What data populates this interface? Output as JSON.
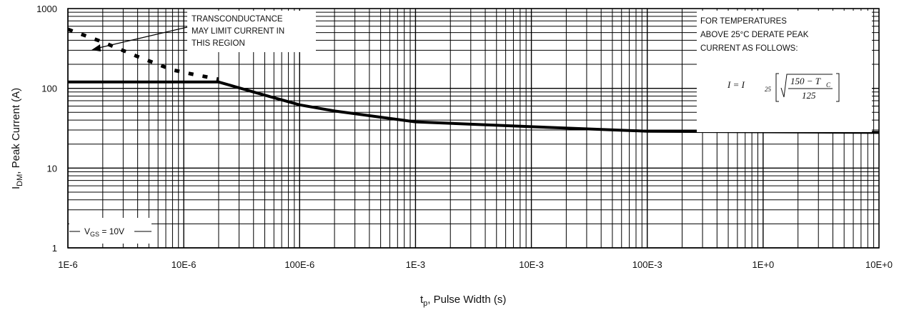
{
  "chart_data": {
    "type": "line",
    "x_scale": "log",
    "y_scale": "log",
    "xlim": [
      1e-06,
      10
    ],
    "ylim": [
      1,
      1000
    ],
    "grid": true,
    "x_tick_labels": [
      "1E-6",
      "10E-6",
      "100E-6",
      "1E-3",
      "10E-3",
      "100E-3",
      "1E+0",
      "10E+0"
    ],
    "y_tick_labels": [
      "1",
      "10",
      "100",
      "1000"
    ],
    "xlabel": {
      "main": "t",
      "sub": "p",
      "rest": ", Pulse Width (s)"
    },
    "ylabel": {
      "main": "I",
      "sub": "DM",
      "rest": ", Peak Current (A)"
    },
    "series": [
      {
        "style": "solid",
        "x": [
          1e-06,
          2e-05,
          4e-05,
          0.0001,
          0.0002,
          0.001,
          0.01,
          0.1,
          1,
          10
        ],
        "y": [
          120,
          120,
          90,
          62,
          52,
          38,
          33,
          29,
          28.5,
          28
        ]
      },
      {
        "style": "dashed",
        "x": [
          1e-06,
          2e-06,
          4e-06,
          8e-06,
          1.2e-05,
          2e-05
        ],
        "y": [
          550,
          380,
          250,
          170,
          150,
          130
        ]
      }
    ],
    "annotations": {
      "transconductance": [
        "TRANSCONDUCTANCE",
        "MAY LIMIT CURRENT IN",
        "THIS REGION"
      ],
      "derate": [
        "FOR TEMPERATURES",
        "ABOVE 25°C DERATE PEAK",
        "CURRENT AS FOLLOWS:"
      ],
      "formula": {
        "lhs": "I  =  I",
        "sub": "25",
        "numerator": "150 − T",
        "numerator_sub": "C",
        "denominator": "125"
      },
      "vgs": {
        "main": "V",
        "sub": "GS",
        "rest": " = 10V"
      }
    }
  }
}
